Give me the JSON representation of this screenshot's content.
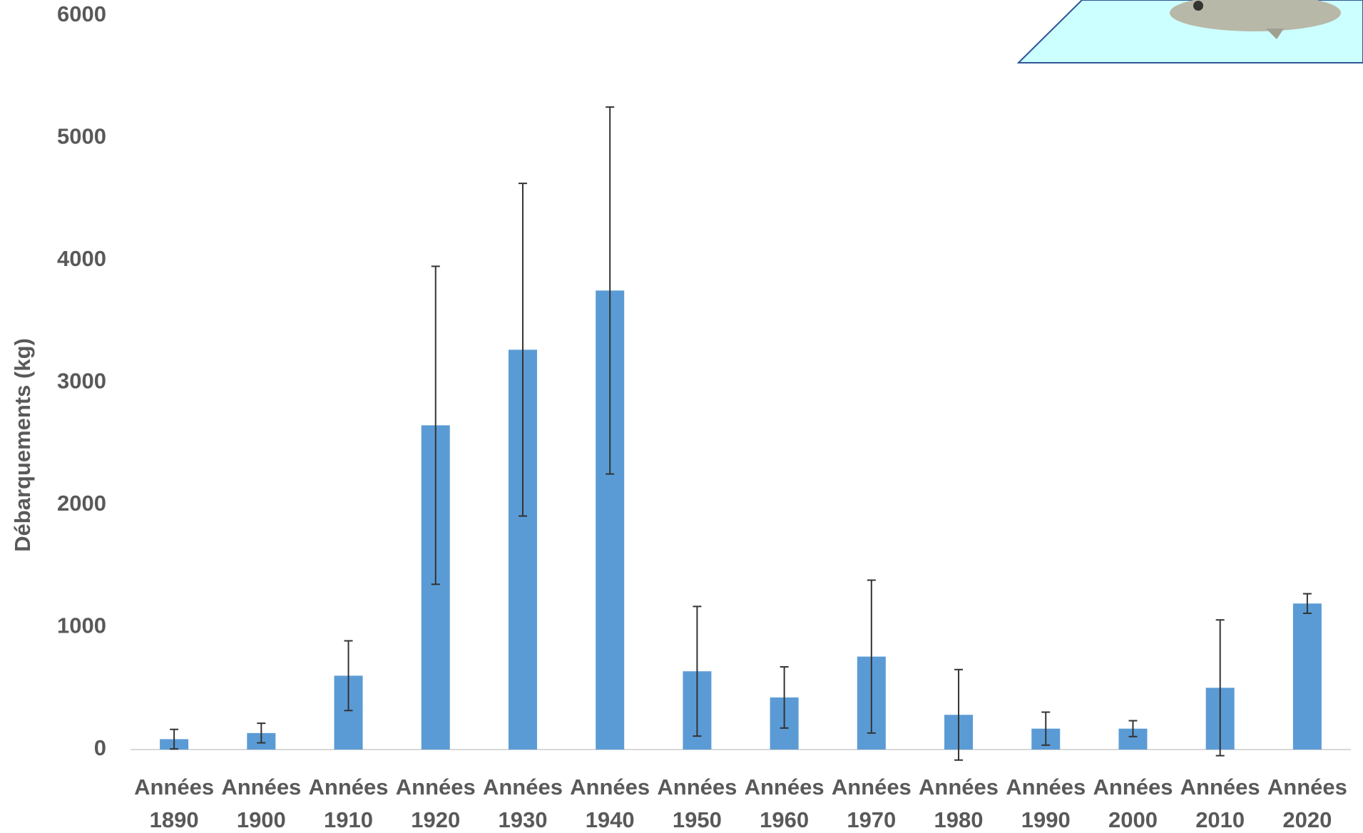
{
  "chart_data": {
    "type": "bar",
    "y_label": "Débarquements (kg)",
    "categories": [
      "Années 1890",
      "Années 1900",
      "Années 1910",
      "Années 1920",
      "Années 1930",
      "Années 1940",
      "Années 1950",
      "Années 1960",
      "Années 1970",
      "Années 1980",
      "Années 1990",
      "Années 2000",
      "Années 2010",
      "Années 2020"
    ],
    "values": [
      85,
      135,
      604,
      2651,
      3269,
      3753,
      640,
      426,
      760,
      284,
      171,
      171,
      505,
      1194
    ],
    "errors": [
      80,
      80,
      285,
      1300,
      1360,
      1500,
      530,
      250,
      625,
      370,
      135,
      65,
      555,
      80
    ],
    "color": "#5b9bd5",
    "ylim": [
      0,
      6000
    ],
    "yticks": [
      0,
      1000,
      2000,
      3000,
      4000,
      5000,
      6000
    ],
    "grid": false
  }
}
